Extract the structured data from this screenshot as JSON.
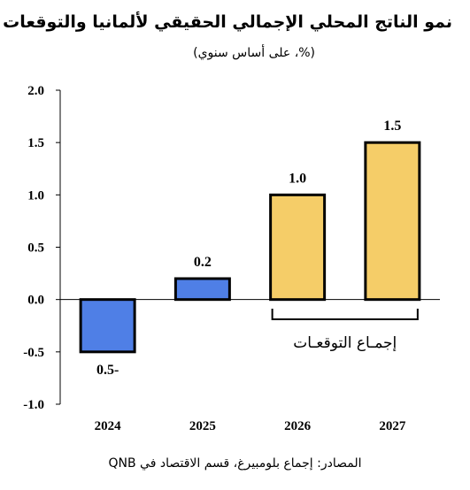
{
  "title": "نمو الناتج المحلي الإجمالي الحقيقي لألمانيا والتوقعات",
  "subtitle": "(%، على أساس سنوي)",
  "source": "المصادر: إجماع بلومبيرغ، قسم الاقتصاد في QNB",
  "chart_data": {
    "type": "bar",
    "categories": [
      "2024",
      "2025",
      "2026",
      "2027"
    ],
    "values": [
      -0.5,
      0.2,
      1.0,
      1.5
    ],
    "data_labels": [
      "0.5-",
      "0.2",
      "1.0",
      "1.5"
    ],
    "ylim": [
      -1.0,
      2.0
    ],
    "yticks": [
      "-1.0",
      "-0.5",
      "0.0",
      "0.5",
      "1.0",
      "1.5",
      "2.0"
    ],
    "ytick_values": [
      -1.0,
      -0.5,
      0.0,
      0.5,
      1.0,
      1.5,
      2.0
    ],
    "bar_colors": [
      "#4f7fe6",
      "#4f7fe6",
      "#f5cd68",
      "#f5cd68"
    ],
    "grid": false,
    "annotation": {
      "label": "إجمـاع التوقعـات",
      "spans": [
        "2026",
        "2027"
      ]
    }
  }
}
